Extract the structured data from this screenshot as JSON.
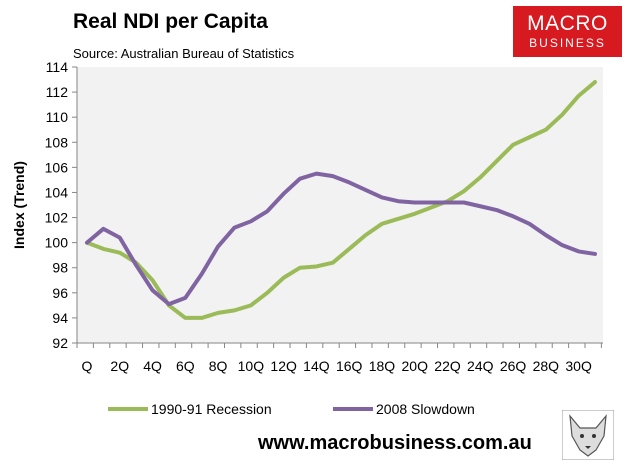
{
  "logo": {
    "line1": "MACRO",
    "line2": "BUSINESS"
  },
  "footer_url": "www.macrobusiness.com.au",
  "chart_data": {
    "type": "line",
    "title": "Real NDI per Capita",
    "subtitle": "Source: Australian Bureau of Statistics",
    "xlabel": "",
    "ylabel": "Index (Trend)",
    "ylim": [
      92,
      114
    ],
    "yticks": [
      92,
      94,
      96,
      98,
      100,
      102,
      104,
      106,
      108,
      110,
      112,
      114
    ],
    "x": [
      0,
      1,
      2,
      3,
      4,
      5,
      6,
      7,
      8,
      9,
      10,
      11,
      12,
      13,
      14,
      15,
      16,
      17,
      18,
      19,
      20,
      21,
      22,
      23,
      24,
      25,
      26,
      27,
      28,
      29,
      30,
      31
    ],
    "xtick_labels": [
      "Q",
      "2Q",
      "4Q",
      "6Q",
      "8Q",
      "10Q",
      "12Q",
      "14Q",
      "16Q",
      "18Q",
      "20Q",
      "22Q",
      "24Q",
      "26Q",
      "28Q",
      "30Q"
    ],
    "legend_position": "bottom",
    "grid": false,
    "series": [
      {
        "name": "1990-91 Recession",
        "color": "#9bbb59",
        "values": [
          100,
          99.5,
          99.2,
          98.4,
          97,
          95,
          94,
          94,
          94.4,
          94.6,
          95,
          96,
          97.2,
          98,
          98.1,
          98.4,
          99.5,
          100.6,
          101.5,
          101.9,
          102.3,
          102.8,
          103.3,
          104.1,
          105.2,
          106.5,
          107.8,
          108.4,
          109,
          110.2,
          111.7,
          112.8
        ]
      },
      {
        "name": "2008 Slowdown",
        "color": "#8064a2",
        "values": [
          100,
          101.1,
          100.4,
          98.2,
          96.2,
          95.1,
          95.6,
          97.5,
          99.7,
          101.2,
          101.7,
          102.5,
          103.9,
          105.1,
          105.5,
          105.3,
          104.8,
          104.2,
          103.6,
          103.3,
          103.2,
          103.2,
          103.2,
          103.2,
          102.9,
          102.6,
          102.1,
          101.5,
          100.6,
          99.8,
          99.3,
          99.1
        ]
      }
    ]
  }
}
